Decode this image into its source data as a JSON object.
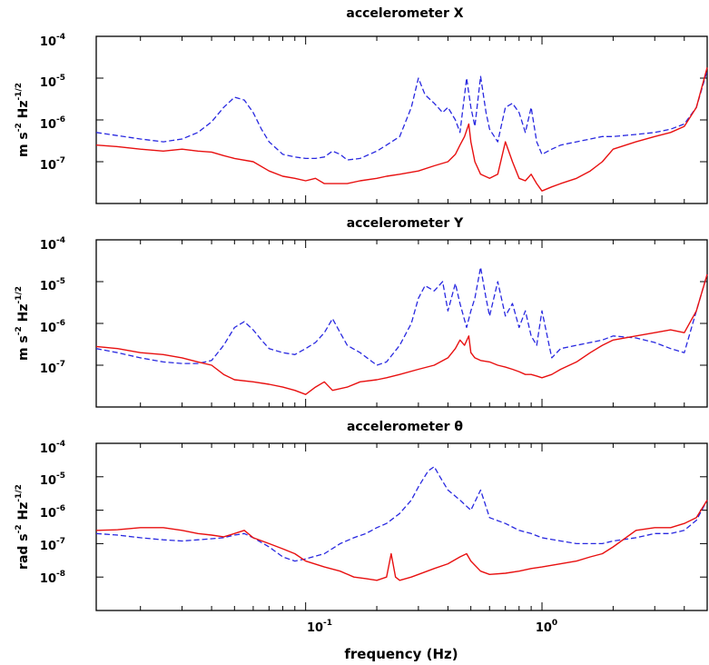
{
  "colors": {
    "dashed": "#2828e0",
    "solid": "#e81010",
    "axis": "#000000"
  },
  "chart_data": [
    {
      "type": "line",
      "title": "accelerometer X",
      "ylabel": {
        "text": "m s",
        "exp1": "-2",
        "mid": " Hz",
        "exp2": "-1/2"
      },
      "xlim": [
        0.013,
        5.0
      ],
      "ylim": [
        1e-08,
        0.0001
      ],
      "x_scale": "log",
      "y_scale": "log",
      "y_ticks": [
        {
          "base": "10",
          "exp": "-4"
        },
        {
          "base": "10",
          "exp": "-5"
        },
        {
          "base": "10",
          "exp": "-6"
        },
        {
          "base": "10",
          "exp": "-7"
        }
      ],
      "series": [
        {
          "style": "dashed",
          "x": [
            0.013,
            0.016,
            0.02,
            0.025,
            0.03,
            0.035,
            0.04,
            0.045,
            0.05,
            0.055,
            0.06,
            0.065,
            0.07,
            0.08,
            0.09,
            0.1,
            0.11,
            0.12,
            0.13,
            0.14,
            0.15,
            0.17,
            0.2,
            0.22,
            0.25,
            0.28,
            0.3,
            0.32,
            0.35,
            0.38,
            0.4,
            0.43,
            0.45,
            0.48,
            0.5,
            0.52,
            0.55,
            0.58,
            0.6,
            0.65,
            0.7,
            0.75,
            0.8,
            0.85,
            0.9,
            0.95,
            1.0,
            1.1,
            1.2,
            1.4,
            1.6,
            1.8,
            2.0,
            2.5,
            3.0,
            3.5,
            4.0,
            4.5,
            5.0
          ],
          "y": [
            5e-07,
            4.2e-07,
            3.5e-07,
            3e-07,
            3.5e-07,
            5e-07,
            9e-07,
            2e-06,
            3.5e-06,
            3e-06,
            1.5e-06,
            6e-07,
            3e-07,
            1.5e-07,
            1.3e-07,
            1.2e-07,
            1.2e-07,
            1.3e-07,
            1.8e-07,
            1.5e-07,
            1.1e-07,
            1.2e-07,
            1.8e-07,
            2.5e-07,
            4e-07,
            2e-06,
            1e-05,
            4e-06,
            2.5e-06,
            1.5e-06,
            2e-06,
            1e-06,
            5e-07,
            1e-05,
            2e-06,
            7e-07,
            1.1e-05,
            1.5e-06,
            6e-07,
            3e-07,
            2e-06,
            2.5e-06,
            1.5e-06,
            5e-07,
            2e-06,
            3e-07,
            1.5e-07,
            2e-07,
            2.5e-07,
            3e-07,
            3.5e-07,
            4e-07,
            4e-07,
            4.5e-07,
            5e-07,
            6e-07,
            8e-07,
            2e-06,
            1.5e-05
          ]
        },
        {
          "style": "solid",
          "x": [
            0.013,
            0.016,
            0.02,
            0.025,
            0.03,
            0.035,
            0.04,
            0.045,
            0.05,
            0.06,
            0.07,
            0.08,
            0.09,
            0.1,
            0.11,
            0.12,
            0.13,
            0.15,
            0.17,
            0.2,
            0.22,
            0.25,
            0.3,
            0.35,
            0.4,
            0.43,
            0.45,
            0.47,
            0.49,
            0.5,
            0.52,
            0.55,
            0.6,
            0.65,
            0.7,
            0.75,
            0.8,
            0.85,
            0.9,
            0.95,
            1.0,
            1.1,
            1.2,
            1.4,
            1.6,
            1.8,
            2.0,
            2.5,
            3.0,
            3.5,
            4.0,
            4.5,
            5.0
          ],
          "y": [
            2.5e-07,
            2.3e-07,
            2e-07,
            1.8e-07,
            2e-07,
            1.8e-07,
            1.7e-07,
            1.4e-07,
            1.2e-07,
            1e-07,
            6e-08,
            4.5e-08,
            4e-08,
            3.5e-08,
            4e-08,
            3e-08,
            3e-08,
            3e-08,
            3.5e-08,
            4e-08,
            4.5e-08,
            5e-08,
            6e-08,
            8e-08,
            1e-07,
            1.5e-07,
            2.5e-07,
            4e-07,
            8e-07,
            3e-07,
            1e-07,
            5e-08,
            4e-08,
            5e-08,
            3e-07,
            1e-07,
            4e-08,
            3.5e-08,
            5e-08,
            3e-08,
            2e-08,
            2.5e-08,
            3e-08,
            4e-08,
            6e-08,
            1e-07,
            2e-07,
            3e-07,
            4e-07,
            5e-07,
            7e-07,
            2e-06,
            1.8e-05
          ]
        }
      ]
    },
    {
      "type": "line",
      "title": "accelerometer Y",
      "ylabel": {
        "text": "m s",
        "exp1": "-2",
        "mid": " Hz",
        "exp2": "-1/2"
      },
      "xlim": [
        0.013,
        5.0
      ],
      "ylim": [
        1e-08,
        0.0001
      ],
      "x_scale": "log",
      "y_scale": "log",
      "y_ticks": [
        {
          "base": "10",
          "exp": "-4"
        },
        {
          "base": "10",
          "exp": "-5"
        },
        {
          "base": "10",
          "exp": "-6"
        },
        {
          "base": "10",
          "exp": "-7"
        }
      ],
      "series": [
        {
          "style": "dashed",
          "x": [
            0.013,
            0.016,
            0.02,
            0.025,
            0.03,
            0.035,
            0.04,
            0.045,
            0.05,
            0.055,
            0.06,
            0.065,
            0.07,
            0.08,
            0.09,
            0.1,
            0.11,
            0.12,
            0.13,
            0.14,
            0.15,
            0.17,
            0.2,
            0.22,
            0.25,
            0.28,
            0.3,
            0.32,
            0.35,
            0.38,
            0.4,
            0.43,
            0.45,
            0.48,
            0.5,
            0.52,
            0.55,
            0.58,
            0.6,
            0.65,
            0.7,
            0.75,
            0.8,
            0.85,
            0.9,
            0.95,
            1.0,
            1.1,
            1.2,
            1.4,
            1.6,
            1.8,
            2.0,
            2.5,
            3.0,
            3.5,
            4.0,
            4.5,
            5.0
          ],
          "y": [
            2.5e-07,
            2e-07,
            1.5e-07,
            1.2e-07,
            1.1e-07,
            1.1e-07,
            1.3e-07,
            3e-07,
            8e-07,
            1.1e-06,
            7e-07,
            4e-07,
            2.5e-07,
            2e-07,
            1.8e-07,
            2.5e-07,
            3.5e-07,
            6e-07,
            1.3e-06,
            6e-07,
            3e-07,
            2e-07,
            1e-07,
            1.2e-07,
            3e-07,
            1e-06,
            4e-06,
            8e-06,
            6e-06,
            1e-05,
            2e-06,
            9e-06,
            3e-06,
            8e-07,
            2e-06,
            4e-06,
            2.2e-05,
            4e-06,
            1.5e-06,
            1e-05,
            1.5e-06,
            3e-06,
            8e-07,
            2e-06,
            5e-07,
            3e-07,
            2e-06,
            1.5e-07,
            2.5e-07,
            3e-07,
            3.5e-07,
            4e-07,
            5e-07,
            4.5e-07,
            3.5e-07,
            2.5e-07,
            2e-07,
            2e-06,
            1.5e-05
          ]
        },
        {
          "style": "solid",
          "x": [
            0.013,
            0.016,
            0.02,
            0.025,
            0.03,
            0.035,
            0.04,
            0.045,
            0.05,
            0.06,
            0.07,
            0.08,
            0.09,
            0.1,
            0.11,
            0.12,
            0.13,
            0.15,
            0.17,
            0.2,
            0.22,
            0.25,
            0.3,
            0.35,
            0.4,
            0.43,
            0.45,
            0.47,
            0.49,
            0.5,
            0.52,
            0.55,
            0.6,
            0.65,
            0.7,
            0.75,
            0.8,
            0.85,
            0.9,
            0.95,
            1.0,
            1.1,
            1.2,
            1.4,
            1.6,
            1.8,
            2.0,
            2.5,
            3.0,
            3.5,
            4.0,
            4.5,
            5.0
          ],
          "y": [
            2.8e-07,
            2.5e-07,
            2e-07,
            1.8e-07,
            1.5e-07,
            1.2e-07,
            1e-07,
            6e-08,
            4.5e-08,
            4e-08,
            3.5e-08,
            3e-08,
            2.5e-08,
            2e-08,
            3e-08,
            4e-08,
            2.5e-08,
            3e-08,
            4e-08,
            4.5e-08,
            5e-08,
            6e-08,
            8e-08,
            1e-07,
            1.5e-07,
            2.5e-07,
            4e-07,
            3e-07,
            5e-07,
            2e-07,
            1.5e-07,
            1.3e-07,
            1.2e-07,
            1e-07,
            9e-08,
            8e-08,
            7e-08,
            6e-08,
            6e-08,
            5.5e-08,
            5e-08,
            6e-08,
            8e-08,
            1.2e-07,
            2e-07,
            3e-07,
            4e-07,
            5e-07,
            6e-07,
            7e-07,
            6e-07,
            2e-06,
            1.5e-05
          ]
        }
      ]
    },
    {
      "type": "line",
      "title": "accelerometer θ",
      "ylabel": {
        "text": "rad s",
        "exp1": "-2",
        "mid": " Hz",
        "exp2": "-1/2"
      },
      "xlabel": "frequency (Hz)",
      "xlim": [
        0.013,
        5.0
      ],
      "ylim": [
        1e-09,
        0.0001
      ],
      "x_scale": "log",
      "y_scale": "log",
      "x_ticks": [
        {
          "value": 0.1,
          "base": "10",
          "exp": "-1"
        },
        {
          "value": 1.0,
          "base": "10",
          "exp": "0"
        }
      ],
      "y_ticks": [
        {
          "base": "10",
          "exp": "-4"
        },
        {
          "base": "10",
          "exp": "-5"
        },
        {
          "base": "10",
          "exp": "-6"
        },
        {
          "base": "10",
          "exp": "-7"
        },
        {
          "base": "10",
          "exp": "-8"
        }
      ],
      "series": [
        {
          "style": "dashed",
          "x": [
            0.013,
            0.016,
            0.02,
            0.025,
            0.03,
            0.035,
            0.04,
            0.045,
            0.05,
            0.055,
            0.06,
            0.07,
            0.08,
            0.09,
            0.1,
            0.12,
            0.14,
            0.16,
            0.18,
            0.2,
            0.22,
            0.25,
            0.28,
            0.3,
            0.33,
            0.35,
            0.37,
            0.4,
            0.45,
            0.5,
            0.55,
            0.6,
            0.7,
            0.8,
            0.9,
            1.0,
            1.2,
            1.4,
            1.6,
            1.8,
            2.0,
            2.5,
            3.0,
            3.5,
            4.0,
            4.5,
            5.0
          ],
          "y": [
            2e-07,
            1.8e-07,
            1.5e-07,
            1.3e-07,
            1.2e-07,
            1.3e-07,
            1.4e-07,
            1.5e-07,
            1.8e-07,
            2e-07,
            1.5e-07,
            8e-08,
            4e-08,
            3e-08,
            3.5e-08,
            5e-08,
            1e-07,
            1.5e-07,
            2e-07,
            3e-07,
            4e-07,
            8e-07,
            2e-06,
            5e-06,
            1.5e-05,
            2e-05,
            1e-05,
            4e-06,
            2e-06,
            1e-06,
            4e-06,
            6e-07,
            4e-07,
            2.5e-07,
            2e-07,
            1.5e-07,
            1.2e-07,
            1e-07,
            1e-07,
            1e-07,
            1.2e-07,
            1.5e-07,
            2e-07,
            2e-07,
            2.5e-07,
            5e-07,
            2e-06
          ]
        },
        {
          "style": "solid",
          "x": [
            0.013,
            0.016,
            0.02,
            0.025,
            0.03,
            0.035,
            0.04,
            0.045,
            0.05,
            0.055,
            0.06,
            0.07,
            0.08,
            0.09,
            0.1,
            0.12,
            0.14,
            0.16,
            0.18,
            0.2,
            0.22,
            0.23,
            0.24,
            0.25,
            0.28,
            0.3,
            0.35,
            0.4,
            0.45,
            0.48,
            0.5,
            0.55,
            0.6,
            0.7,
            0.8,
            0.9,
            1.0,
            1.2,
            1.4,
            1.6,
            1.8,
            2.0,
            2.5,
            3.0,
            3.5,
            4.0,
            4.5,
            5.0
          ],
          "y": [
            2.5e-07,
            2.6e-07,
            3e-07,
            3e-07,
            2.5e-07,
            2e-07,
            1.8e-07,
            1.6e-07,
            2e-07,
            2.5e-07,
            1.5e-07,
            1e-07,
            7e-08,
            5e-08,
            3e-08,
            2e-08,
            1.5e-08,
            1e-08,
            9e-09,
            8e-09,
            1e-08,
            5e-08,
            1e-08,
            8e-09,
            1e-08,
            1.2e-08,
            1.8e-08,
            2.5e-08,
            4e-08,
            5e-08,
            3e-08,
            1.5e-08,
            1.2e-08,
            1.3e-08,
            1.5e-08,
            1.8e-08,
            2e-08,
            2.5e-08,
            3e-08,
            4e-08,
            5e-08,
            8e-08,
            2.5e-07,
            3e-07,
            3e-07,
            4e-07,
            6e-07,
            2e-06
          ]
        }
      ]
    }
  ]
}
